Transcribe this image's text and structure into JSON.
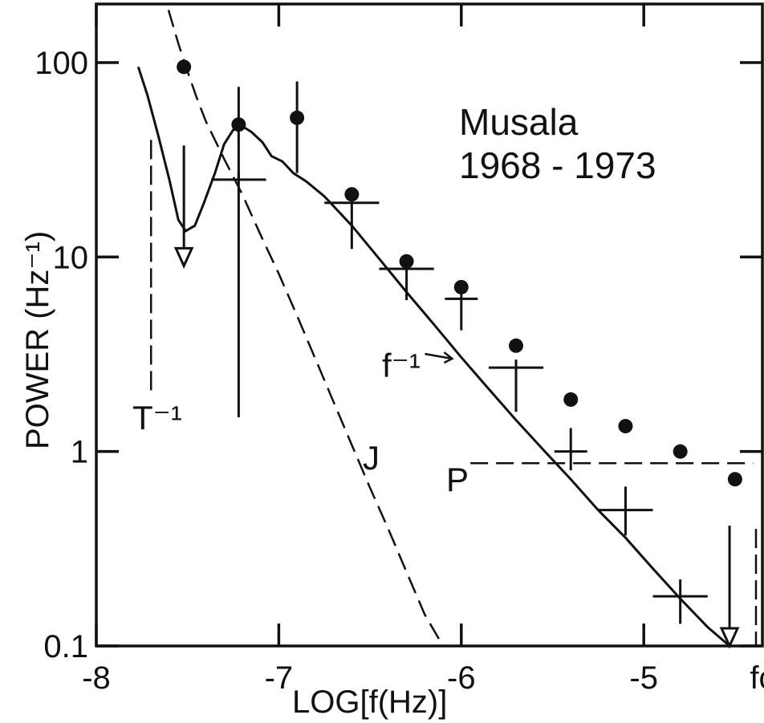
{
  "chart_data": {
    "type": "scatter",
    "title": "Musala",
    "subtitle": "1968 - 1973",
    "xlabel": "LOG[f(Hz)]",
    "ylabel": "POWER (Hz⁻¹)",
    "xlim": [
      -8,
      -4.35
    ],
    "ylim": [
      0.1,
      200
    ],
    "y_scale": "log",
    "grid": false,
    "x_tick_labels": [
      {
        "value": -8,
        "label": "-8"
      },
      {
        "value": -7,
        "label": "-7"
      },
      {
        "value": -6,
        "label": "-6"
      },
      {
        "value": -5,
        "label": "-5"
      },
      {
        "value": -4.35,
        "label": "fc"
      }
    ],
    "y_tick_labels": [
      {
        "value": 0.1,
        "label": "0.1"
      },
      {
        "value": 1,
        "label": "1"
      },
      {
        "value": 10,
        "label": "10"
      },
      {
        "value": 100,
        "label": "100"
      }
    ],
    "filled_points": [
      {
        "x": -7.52,
        "y": 95
      },
      {
        "x": -7.22,
        "y": 48
      },
      {
        "x": -6.9,
        "y": 52
      },
      {
        "x": -6.6,
        "y": 21
      },
      {
        "x": -6.3,
        "y": 9.5
      },
      {
        "x": -6.0,
        "y": 7
      },
      {
        "x": -5.7,
        "y": 3.5
      },
      {
        "x": -5.4,
        "y": 1.85
      },
      {
        "x": -5.1,
        "y": 1.35
      },
      {
        "x": -4.8,
        "y": 1.0
      },
      {
        "x": -4.5,
        "y": 0.72
      }
    ],
    "filled_point_errors": [
      {
        "x": -7.22,
        "low": 1.5,
        "high": 75
      },
      {
        "x": -6.9,
        "low": 27,
        "high": 80
      }
    ],
    "crosses": [
      {
        "x": -7.22,
        "y": 25,
        "xerr": 0.15,
        "ylo": 25,
        "yhi": 25
      },
      {
        "x": -6.6,
        "y": 19,
        "xerr": 0.15,
        "ylo": 11,
        "yhi": 19
      },
      {
        "x": -6.3,
        "y": 8.7,
        "xerr": 0.15,
        "ylo": 6,
        "yhi": 8.7
      },
      {
        "x": -6.0,
        "y": 6.1,
        "xerr": 0.09,
        "ylo": 4.2,
        "yhi": 6.1
      },
      {
        "x": -5.7,
        "y": 2.7,
        "xerr": 0.15,
        "ylo": 1.6,
        "yhi": 2.7
      },
      {
        "x": -5.4,
        "y": 1.0,
        "xerr": 0.09,
        "ylo": 0.8,
        "yhi": 1.2
      },
      {
        "x": -5.1,
        "y": 0.5,
        "xerr": 0.15,
        "ylo": 0.37,
        "yhi": 0.6
      },
      {
        "x": -4.8,
        "y": 0.18,
        "xerr": 0.15,
        "ylo": 0.13,
        "yhi": 0.2
      }
    ],
    "upper_limits": [
      {
        "x": -7.52,
        "y": 9
      },
      {
        "x": -4.53,
        "y": 0.1
      }
    ],
    "curve_solid": {
      "name": "",
      "x": [
        -7.77,
        -7.72,
        -7.66,
        -7.6,
        -7.55,
        -7.51,
        -7.46,
        -7.41,
        -7.35,
        -7.3,
        -7.25,
        -7.2,
        -7.15,
        -7.09,
        -7.04,
        -6.98,
        -6.92,
        -6.85,
        -6.75,
        -6.6,
        -6.45,
        -6.3,
        -6.15,
        -6.0,
        -5.85,
        -5.7,
        -5.55,
        -5.4,
        -5.25,
        -5.1,
        -4.95,
        -4.8,
        -4.65,
        -4.53
      ],
      "y": [
        95,
        68,
        42,
        25,
        15.5,
        13.6,
        14.5,
        19,
        27,
        38,
        45,
        47,
        44,
        39,
        33,
        31,
        27,
        24.5,
        20.5,
        14.5,
        9.8,
        6.6,
        4.5,
        3.05,
        2.1,
        1.45,
        1.02,
        0.72,
        0.5,
        0.36,
        0.25,
        0.175,
        0.125,
        0.1
      ]
    },
    "curve_dashed_J": {
      "label": "J",
      "x": [
        -7.64,
        -7.6,
        -7.55,
        -7.5,
        -7.45,
        -7.4,
        -7.3,
        -7.2,
        -7.1,
        -7.0,
        -6.9,
        -6.8,
        -6.7,
        -6.6,
        -6.5,
        -6.4,
        -6.3,
        -6.2,
        -6.1,
        -6.07
      ],
      "y": [
        250,
        180,
        125,
        90,
        66,
        50,
        32,
        21,
        13,
        8.2,
        5.0,
        3.0,
        1.8,
        1.08,
        0.65,
        0.4,
        0.24,
        0.145,
        0.1,
        0.092
      ]
    },
    "line_P": {
      "label": "P",
      "x": [
        -5.95,
        -4.4
      ],
      "y": [
        0.87,
        0.87
      ]
    },
    "marker_T": {
      "label": "T⁻¹",
      "x": -7.7,
      "y_top": 40,
      "y_bottom": 2.0
    },
    "marker_fc": {
      "x": -4.35,
      "y_top": 0.4,
      "y_bottom": 0.1
    },
    "annotation_f": {
      "label": "f⁻¹",
      "x": -6.05,
      "y": 3.0
    }
  }
}
